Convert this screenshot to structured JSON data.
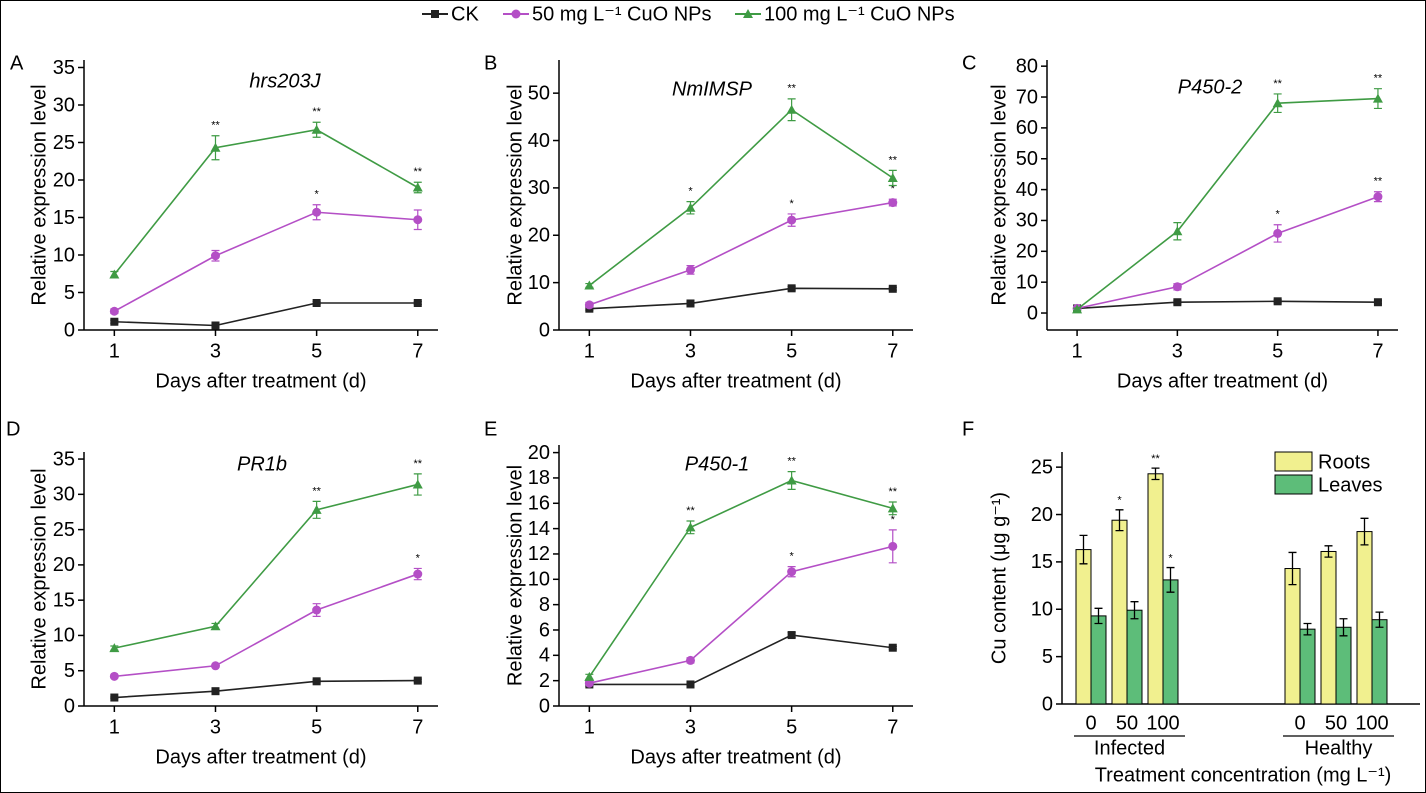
{
  "legend": {
    "entries": [
      {
        "name": "CK",
        "color": "#222222",
        "marker": "square"
      },
      {
        "name": "50 mg L⁻¹ CuO NPs",
        "color": "#b44fc6",
        "marker": "circle"
      },
      {
        "name": "100 mg L⁻¹ CuO NPs",
        "color": "#3f9b44",
        "marker": "triangle"
      }
    ]
  },
  "chart_data": [
    {
      "type": "line",
      "label": "A",
      "title": "hrs203J",
      "x_label": "Days after treatment (d)",
      "y_label": "Relative expression level",
      "x": [
        1,
        3,
        5,
        7
      ],
      "xlim": [
        0.4,
        7.4
      ],
      "xticks": [
        1,
        3,
        5,
        7
      ],
      "ylim": [
        0,
        36
      ],
      "yticks": [
        0,
        5,
        10,
        15,
        20,
        25,
        30,
        35
      ],
      "series": [
        {
          "values": [
            1.1,
            0.6,
            3.6,
            3.6
          ],
          "errors": [
            0.2,
            0.2,
            0.2,
            0.2
          ],
          "annotations": [
            null,
            null,
            null,
            null
          ]
        },
        {
          "values": [
            2.5,
            9.9,
            15.7,
            14.7
          ],
          "errors": [
            0.3,
            0.7,
            1.0,
            1.3
          ],
          "annotations": [
            null,
            null,
            "*",
            null
          ]
        },
        {
          "values": [
            7.4,
            24.3,
            26.7,
            19.0
          ],
          "errors": [
            0.4,
            1.6,
            1.0,
            0.7
          ],
          "annotations": [
            null,
            "**",
            "**",
            "**"
          ]
        }
      ]
    },
    {
      "type": "line",
      "label": "B",
      "title": "NmIMSP",
      "x_label": "Days after treatment (d)",
      "y_label": "Relative expression level",
      "x": [
        1,
        3,
        5,
        7
      ],
      "xlim": [
        0.4,
        7.4
      ],
      "xticks": [
        1,
        3,
        5,
        7
      ],
      "ylim": [
        0,
        57
      ],
      "yticks": [
        0,
        10,
        20,
        30,
        40,
        50
      ],
      "series": [
        {
          "values": [
            4.5,
            5.6,
            8.8,
            8.7
          ],
          "errors": [
            0.3,
            0.4,
            0.4,
            0.3
          ],
          "annotations": [
            null,
            null,
            null,
            null
          ]
        },
        {
          "values": [
            5.3,
            12.7,
            23.2,
            26.9
          ],
          "errors": [
            0.5,
            0.9,
            1.3,
            0.7
          ],
          "annotations": [
            null,
            null,
            "*",
            "*"
          ]
        },
        {
          "values": [
            9.4,
            25.8,
            46.5,
            32.1
          ],
          "errors": [
            0.4,
            1.3,
            2.3,
            1.6
          ],
          "annotations": [
            null,
            "*",
            "**",
            "**"
          ]
        }
      ]
    },
    {
      "type": "line",
      "label": "C",
      "title": "P450-2",
      "x_label": "Days after treatment (d)",
      "y_label": "Relative expression level",
      "x": [
        1,
        3,
        5,
        7
      ],
      "xlim": [
        0.4,
        7.4
      ],
      "xticks": [
        1,
        3,
        5,
        7
      ],
      "ylim": [
        -5.5,
        82
      ],
      "yticks": [
        0,
        10,
        20,
        30,
        40,
        50,
        60,
        70,
        80
      ],
      "series": [
        {
          "values": [
            1.5,
            3.5,
            3.8,
            3.5
          ],
          "errors": [
            0.3,
            0.5,
            0.5,
            0.5
          ],
          "annotations": [
            null,
            null,
            null,
            null
          ]
        },
        {
          "values": [
            1.5,
            8.5,
            25.8,
            37.7
          ],
          "errors": [
            0.5,
            1.0,
            2.8,
            1.6
          ],
          "annotations": [
            null,
            null,
            "*",
            "**"
          ]
        },
        {
          "values": [
            1.2,
            26.5,
            68.0,
            69.5
          ],
          "errors": [
            0.4,
            2.8,
            3.0,
            3.2
          ],
          "annotations": [
            null,
            null,
            "**",
            "**"
          ]
        }
      ]
    },
    {
      "type": "line",
      "label": "D",
      "title": "PR1b",
      "x_label": "Days after treatment (d)",
      "y_label": "Relative expression level",
      "x": [
        1,
        3,
        5,
        7
      ],
      "xlim": [
        0.4,
        7.4
      ],
      "xticks": [
        1,
        3,
        5,
        7
      ],
      "ylim": [
        0,
        36
      ],
      "yticks": [
        0,
        5,
        10,
        15,
        20,
        25,
        30,
        35
      ],
      "series": [
        {
          "values": [
            1.2,
            2.1,
            3.5,
            3.6
          ],
          "errors": [
            0.1,
            0.2,
            0.2,
            0.2
          ],
          "annotations": [
            null,
            null,
            null,
            null
          ]
        },
        {
          "values": [
            4.2,
            5.7,
            13.6,
            18.7
          ],
          "errors": [
            0.2,
            0.2,
            0.9,
            0.8
          ],
          "annotations": [
            null,
            null,
            null,
            "*"
          ]
        },
        {
          "values": [
            8.2,
            11.3,
            27.8,
            31.4
          ],
          "errors": [
            0.3,
            0.4,
            1.2,
            1.5
          ],
          "annotations": [
            null,
            null,
            "**",
            "**"
          ]
        }
      ]
    },
    {
      "type": "line",
      "label": "E",
      "title": "P450-1",
      "x_label": "Days after treatment (d)",
      "y_label": "Relative expression level",
      "x": [
        1,
        3,
        5,
        7
      ],
      "xlim": [
        0.4,
        7.4
      ],
      "xticks": [
        1,
        3,
        5,
        7
      ],
      "ylim": [
        0,
        20.6
      ],
      "yticks": [
        0,
        2,
        4,
        6,
        8,
        10,
        12,
        14,
        16,
        18,
        20
      ],
      "series": [
        {
          "values": [
            1.7,
            1.7,
            5.6,
            4.6
          ],
          "errors": [
            0.1,
            0.1,
            0.2,
            0.1
          ],
          "annotations": [
            null,
            null,
            null,
            null
          ]
        },
        {
          "values": [
            1.8,
            3.6,
            10.6,
            12.6
          ],
          "errors": [
            0.1,
            0.2,
            0.4,
            1.3
          ],
          "annotations": [
            null,
            null,
            "*",
            "*"
          ]
        },
        {
          "values": [
            2.3,
            14.1,
            17.8,
            15.6
          ],
          "errors": [
            0.2,
            0.5,
            0.7,
            0.5
          ],
          "annotations": [
            null,
            "**",
            "**",
            "**"
          ]
        }
      ]
    },
    {
      "type": "bar",
      "label": "F",
      "x_label": "Treatment concentration (mg L⁻¹)",
      "y_label": "Cu content (μg g⁻¹)",
      "groups": [
        "Infected",
        "Healthy"
      ],
      "categories": [
        "0",
        "50",
        "100",
        "0",
        "50",
        "100"
      ],
      "ylim": [
        0,
        26.6
      ],
      "yticks": [
        0,
        5,
        10,
        15,
        20,
        25
      ],
      "legend_position": "upper right",
      "series": [
        {
          "name": "Roots",
          "color": "#f1f08f",
          "values": [
            16.3,
            19.4,
            24.3,
            14.3,
            16.1,
            18.2
          ],
          "errors": [
            1.5,
            1.1,
            0.6,
            1.7,
            0.6,
            1.4
          ],
          "annotations": [
            null,
            "*",
            "**",
            null,
            null,
            null
          ]
        },
        {
          "name": "Leaves",
          "color": "#5dbd79",
          "values": [
            9.3,
            9.9,
            13.1,
            7.9,
            8.1,
            8.9
          ],
          "errors": [
            0.8,
            0.9,
            1.3,
            0.6,
            0.9,
            0.8
          ],
          "annotations": [
            null,
            null,
            "*",
            null,
            null,
            null
          ]
        }
      ]
    }
  ]
}
